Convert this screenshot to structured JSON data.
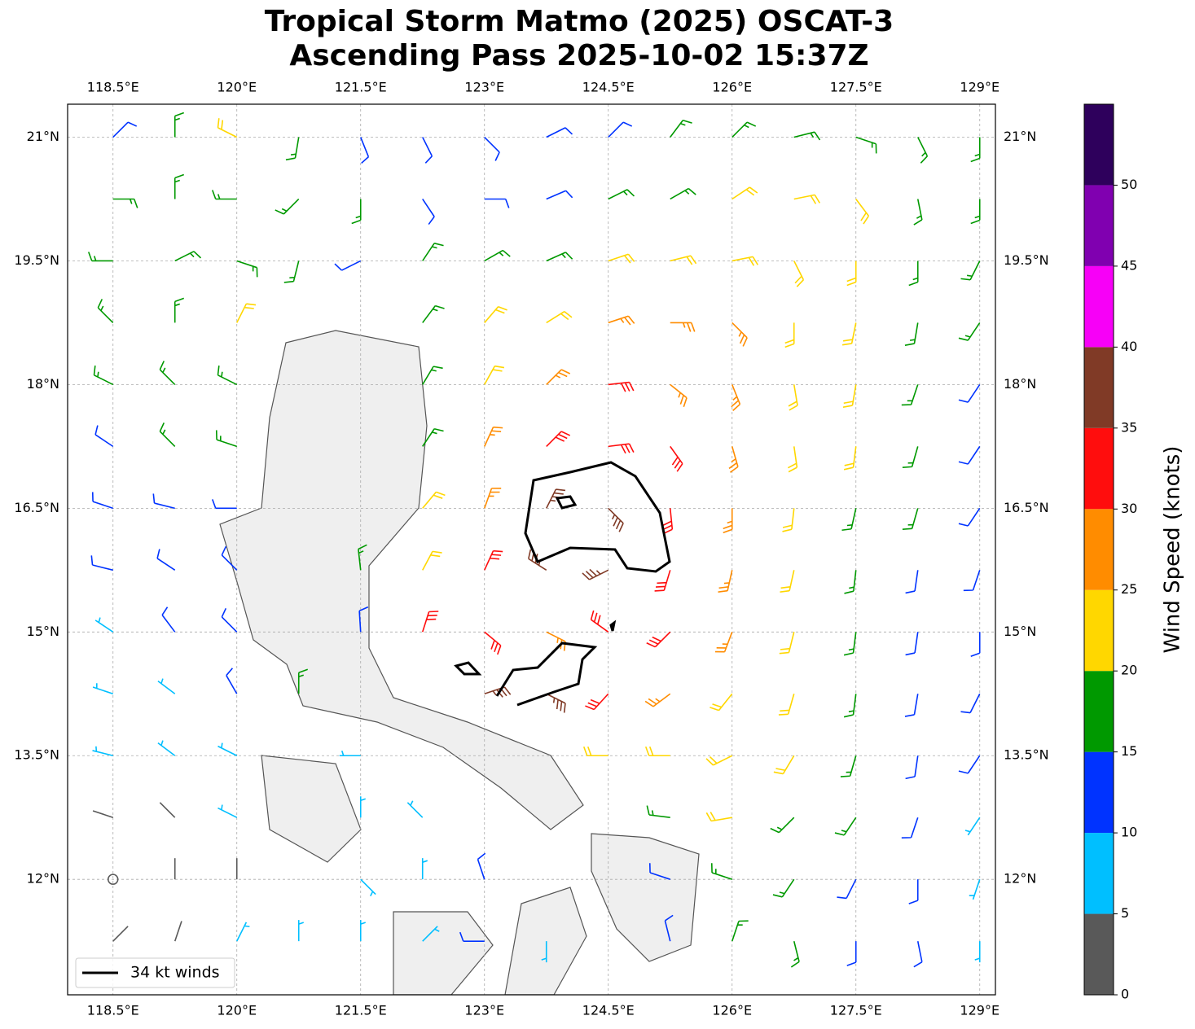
{
  "chart_data": {
    "type": "wind-barbs",
    "title": [
      "Tropical Storm Matmo (2025) OSCAT-3",
      "Ascending Pass 2025-10-02 15:37Z"
    ],
    "xlim": [
      117.95,
      129.19
    ],
    "ylim": [
      10.6,
      21.4
    ],
    "xticks": [
      {
        "value": 118.5,
        "label": "118.5°E"
      },
      {
        "value": 120,
        "label": "120°E"
      },
      {
        "value": 121.5,
        "label": "121.5°E"
      },
      {
        "value": 123,
        "label": "123°E"
      },
      {
        "value": 124.5,
        "label": "124.5°E"
      },
      {
        "value": 126,
        "label": "126°E"
      },
      {
        "value": 127.5,
        "label": "127.5°E"
      },
      {
        "value": 129,
        "label": "129°E"
      }
    ],
    "yticks": [
      {
        "value": 21,
        "label": "21°N"
      },
      {
        "value": 19.5,
        "label": "19.5°N"
      },
      {
        "value": 18,
        "label": "18°N"
      },
      {
        "value": 16.5,
        "label": "16.5°N"
      },
      {
        "value": 15,
        "label": "15°N"
      },
      {
        "value": 13.5,
        "label": "13.5°N"
      },
      {
        "value": 12,
        "label": "12°N"
      }
    ],
    "grid": true,
    "lon": [
      118.5,
      119.25,
      120,
      120.75,
      121.5,
      122.25,
      123,
      123.75,
      124.5,
      125.25,
      126,
      126.75,
      127.5,
      128.25,
      129
    ],
    "lat": [
      21,
      20.25,
      19.5,
      18.75,
      18,
      17.25,
      16.5,
      15.75,
      15,
      14.25,
      13.5,
      12.75,
      12,
      11.25
    ],
    "speed": [
      [
        13,
        17,
        20,
        18,
        14,
        13,
        12,
        12,
        13,
        15,
        17,
        18,
        18,
        17,
        16
      ],
      [
        17,
        17,
        18,
        17,
        16,
        14,
        13,
        14,
        16,
        18,
        20,
        22,
        21,
        18,
        16
      ],
      [
        17,
        17,
        18,
        16,
        14,
        15,
        17,
        19,
        21,
        22,
        23,
        23,
        21,
        18,
        16
      ],
      [
        17,
        19,
        21,
        null,
        null,
        16,
        20,
        23,
        25,
        26,
        25,
        23,
        21,
        18,
        15
      ],
      [
        15,
        17,
        19,
        null,
        null,
        18,
        23,
        27,
        30,
        28,
        26,
        23,
        20,
        17,
        14
      ],
      [
        13,
        15,
        17,
        null,
        null,
        19,
        25,
        30,
        34,
        31,
        27,
        24,
        20,
        16,
        13
      ],
      [
        12,
        13,
        13,
        null,
        null,
        22,
        28,
        36,
        38,
        33,
        28,
        24,
        19,
        15,
        12
      ],
      [
        10,
        11,
        12,
        null,
        15,
        24,
        30,
        35,
        37,
        32,
        27,
        23,
        18,
        14,
        11
      ],
      [
        8,
        10,
        12,
        null,
        14,
        30,
        33,
        25,
        32,
        30,
        26,
        22,
        18,
        14,
        11
      ],
      [
        7,
        8,
        10,
        15,
        null,
        null,
        36,
        37,
        30,
        26,
        24,
        21,
        17,
        13,
        11
      ],
      [
        5,
        6,
        8,
        null,
        9,
        null,
        null,
        null,
        22,
        22,
        22,
        20,
        17,
        13,
        10
      ],
      [
        3,
        4,
        6,
        null,
        8,
        9,
        null,
        null,
        null,
        19,
        20,
        18,
        15,
        12,
        9
      ],
      [
        2,
        3,
        4,
        null,
        9,
        8,
        11,
        null,
        null,
        14,
        16,
        15,
        13,
        11,
        8
      ],
      [
        3,
        4,
        6,
        8,
        9,
        9,
        10,
        9,
        null,
        13,
        17,
        16,
        13,
        12,
        8
      ]
    ],
    "colorbar": {
      "bounds": [
        0,
        5,
        10,
        15,
        20,
        25,
        30,
        35,
        40,
        45,
        50,
        55
      ],
      "colors": [
        "#595959",
        "#00bfff",
        "#0033ff",
        "#009900",
        "#ffd700",
        "#ff8c00",
        "#ff0d0d",
        "#803a26",
        "#f700f7",
        "#8000b0",
        "#2e005c"
      ],
      "ticks": [
        0,
        5,
        10,
        15,
        20,
        25,
        30,
        35,
        40,
        45,
        50
      ],
      "label": "Wind Speed (knots)"
    },
    "legend": {
      "label": "34 kt winds",
      "loc": "lower left"
    }
  }
}
